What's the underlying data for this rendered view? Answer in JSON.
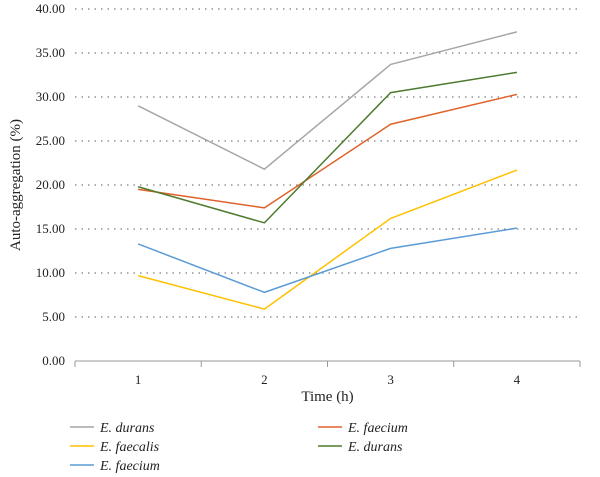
{
  "chart_data": {
    "type": "line",
    "title": "",
    "xlabel": "Time (h)",
    "ylabel": "Auto-aggregation (%)",
    "categories": [
      "1",
      "2",
      "3",
      "4"
    ],
    "ylim": [
      0,
      40
    ],
    "yticks": [
      "0.00",
      "5.00",
      "10.00",
      "15.00",
      "20.00",
      "25.00",
      "30.00",
      "35.00",
      "40.00"
    ],
    "grid": "horizontal-dotted",
    "legend_position": "bottom",
    "series": [
      {
        "name": "E. durans",
        "color": "#a6a6a6",
        "values": [
          29.0,
          21.8,
          33.7,
          37.4
        ]
      },
      {
        "name": "E. faecium",
        "color": "#e0622a",
        "values": [
          19.5,
          17.4,
          26.9,
          30.3
        ]
      },
      {
        "name": "E. faecalis",
        "color": "#ffc000",
        "values": [
          9.7,
          5.9,
          16.2,
          21.7
        ]
      },
      {
        "name": "E. durans",
        "color": "#4e7a2e",
        "values": [
          19.8,
          15.7,
          30.5,
          32.8
        ]
      },
      {
        "name": "E. faecium",
        "color": "#5b9bd5",
        "values": [
          13.3,
          7.8,
          12.8,
          15.1
        ]
      }
    ]
  }
}
